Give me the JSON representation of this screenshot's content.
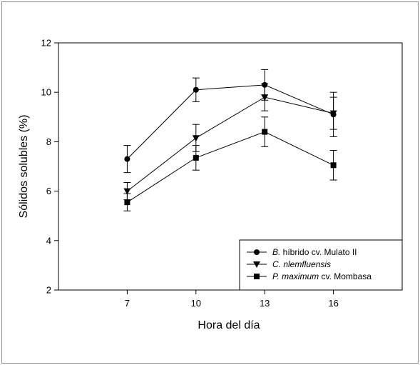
{
  "chart_data": {
    "type": "line",
    "xlabel": "Hora del día",
    "ylabel": "Sólidos solubles (%)",
    "x": [
      7,
      10,
      13,
      16
    ],
    "xlim": [
      4,
      19
    ],
    "ylim": [
      2,
      12
    ],
    "xticks": [
      "7",
      "10",
      "13",
      "16"
    ],
    "yticks": [
      "2",
      "4",
      "6",
      "8",
      "10",
      "12"
    ],
    "grid": false,
    "legend_position": "bottom-right",
    "series": [
      {
        "name_italic": "B.",
        "name_rest": " híbrido cv. Mulato II",
        "marker": "circle",
        "values": [
          7.3,
          10.1,
          10.3,
          9.1
        ],
        "errors": [
          0.55,
          0.48,
          0.62,
          0.9
        ]
      },
      {
        "name_italic": "C. nlemfluensis",
        "name_rest": "",
        "marker": "triangle-down",
        "values": [
          6.0,
          8.15,
          9.8,
          9.15
        ],
        "errors": [
          0.35,
          0.55,
          0.55,
          0.65
        ]
      },
      {
        "name_italic": "P. maximum",
        "name_rest": " cv. Mombasa",
        "marker": "square",
        "values": [
          5.55,
          7.35,
          8.4,
          7.05
        ],
        "errors": [
          0.35,
          0.5,
          0.6,
          0.6
        ]
      }
    ]
  }
}
